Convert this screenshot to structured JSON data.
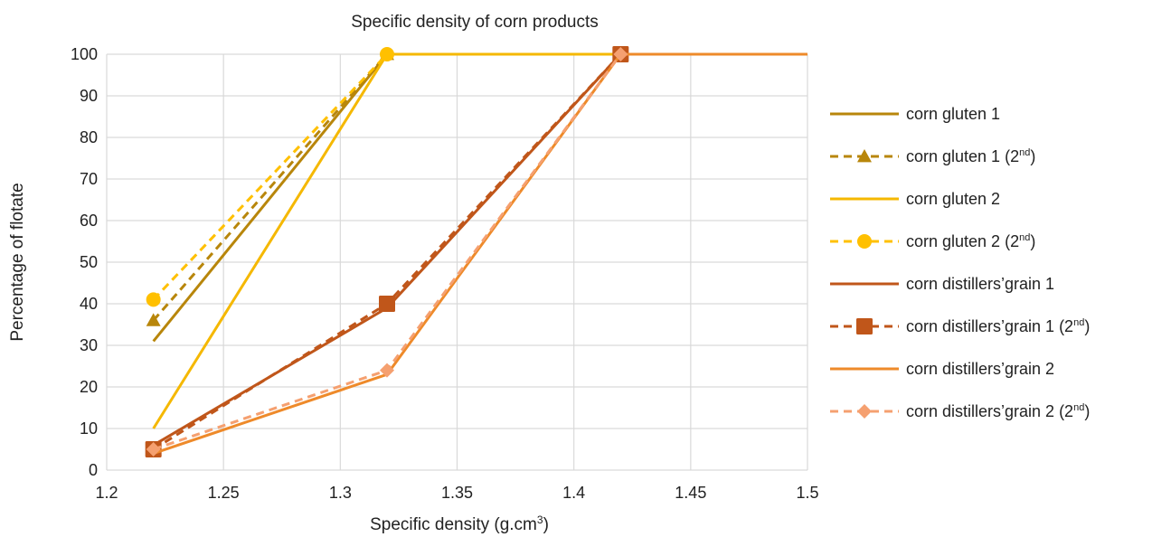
{
  "chart_data": {
    "type": "line",
    "title": "Specific density of corn products",
    "xlabel_main": "Specific density (g.cm",
    "xlabel_sup": "3",
    "xlabel_end": ")",
    "ylabel": "Percentage of flotate",
    "xlim": [
      1.2,
      1.5
    ],
    "ylim": [
      0,
      100
    ],
    "xticks": [
      "1.2",
      "1.25",
      "1.3",
      "1.35",
      "1.4",
      "1.45",
      "1.5"
    ],
    "xtick_values": [
      1.2,
      1.25,
      1.3,
      1.35,
      1.4,
      1.45,
      1.5
    ],
    "yticks": [
      "0",
      "10",
      "20",
      "30",
      "40",
      "50",
      "60",
      "70",
      "80",
      "90",
      "100"
    ],
    "ytick_values": [
      0,
      10,
      20,
      30,
      40,
      50,
      60,
      70,
      80,
      90,
      100
    ],
    "grid": true,
    "legend_position": "right",
    "series": [
      {
        "name": "corn gluten 1",
        "sup": "",
        "color": "#B8860B",
        "dash": "solid",
        "marker": "none",
        "x": [
          1.22,
          1.32,
          1.5
        ],
        "y": [
          31,
          100,
          100
        ]
      },
      {
        "name": "corn gluten 1 (2",
        "sup": "nd",
        "close": ")",
        "color": "#B8860B",
        "dash": "dashed",
        "marker": "triangle",
        "x": [
          1.22,
          1.32
        ],
        "y": [
          36,
          100
        ]
      },
      {
        "name": "corn gluten 2",
        "sup": "",
        "color": "#F5B800",
        "dash": "solid",
        "marker": "none",
        "x": [
          1.22,
          1.32,
          1.5
        ],
        "y": [
          10,
          100,
          100
        ]
      },
      {
        "name": "corn gluten 2 (2",
        "sup": "nd",
        "close": ")",
        "color": "#FFC000",
        "dash": "dashed",
        "marker": "circle",
        "x": [
          1.22,
          1.32
        ],
        "y": [
          41,
          100
        ]
      },
      {
        "name": "corn distillers’grain 1",
        "sup": "",
        "color": "#C0561A",
        "dash": "solid",
        "marker": "none",
        "x": [
          1.22,
          1.32,
          1.42,
          1.5
        ],
        "y": [
          6,
          39,
          100,
          100
        ]
      },
      {
        "name": "corn distillers’grain 1 (2",
        "sup": "nd",
        "close": ")",
        "color": "#C0561A",
        "dash": "dashed",
        "marker": "square",
        "x": [
          1.22,
          1.32,
          1.42
        ],
        "y": [
          5,
          40,
          100
        ]
      },
      {
        "name": "corn distillers’grain 2",
        "sup": "",
        "color": "#EE8A2A",
        "dash": "solid",
        "marker": "none",
        "x": [
          1.22,
          1.32,
          1.42,
          1.5
        ],
        "y": [
          4,
          23,
          100,
          100
        ]
      },
      {
        "name": "corn distillers’grain 2 (2",
        "sup": "nd",
        "close": ")",
        "color": "#F5A070",
        "dash": "dashed",
        "marker": "diamond",
        "x": [
          1.22,
          1.32,
          1.42
        ],
        "y": [
          5,
          24,
          100
        ]
      }
    ]
  }
}
